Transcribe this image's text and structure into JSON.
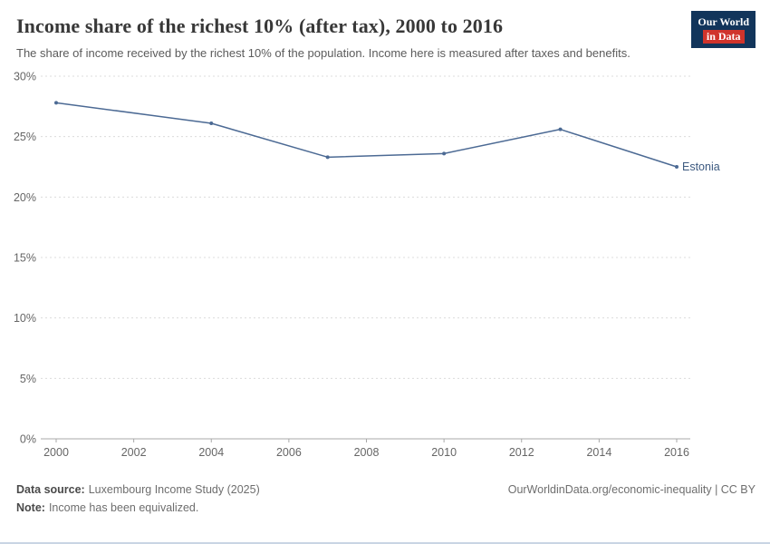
{
  "header": {
    "title": "Income share of the richest 10% (after tax), 2000 to 2016",
    "subtitle": "The share of income received by the richest 10% of the population. Income here is measured after taxes and benefits.",
    "logo": {
      "line1": "Our World",
      "line2": "in Data"
    }
  },
  "chart_data": {
    "type": "line",
    "title": "Income share of the richest 10% (after tax), 2000 to 2016",
    "xlabel": "",
    "ylabel": "",
    "xlim": [
      2000,
      2016
    ],
    "ylim": [
      0,
      30
    ],
    "xticks": [
      2000,
      2002,
      2004,
      2006,
      2008,
      2010,
      2012,
      2014,
      2016
    ],
    "yticks": [
      0,
      5,
      10,
      15,
      20,
      25,
      30
    ],
    "ytick_suffix": "%",
    "grid": "horizontal-dashed",
    "legend_position": "end-of-line-label",
    "series": [
      {
        "name": "Estonia",
        "color": "#4c6a94",
        "x": [
          2000,
          2004,
          2007,
          2010,
          2013,
          2016
        ],
        "values": [
          27.8,
          26.1,
          23.3,
          23.6,
          25.6,
          22.5
        ]
      }
    ]
  },
  "footer": {
    "source_label": "Data source:",
    "source_text": "Luxembourg Income Study (2025)",
    "note_label": "Note:",
    "note_text": "Income has been equivalized.",
    "right_text": "OurWorldinData.org/economic-inequality | CC BY"
  },
  "colors": {
    "line": "#4c6a94",
    "end_label": "#3d5a80",
    "grid": "#dcdcdc",
    "axis": "#a8a8a8",
    "tick_text": "#666666",
    "logo_bg": "#12355b",
    "logo_red": "#d0342c",
    "title_text": "#383838"
  }
}
